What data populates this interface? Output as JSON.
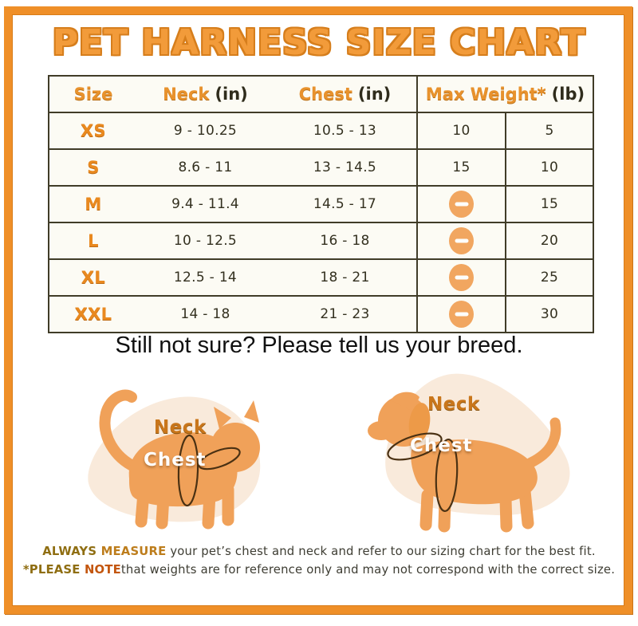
{
  "title": "PET HARNESS SIZE CHART",
  "chart_data": {
    "type": "table",
    "title": "PET HARNESS SIZE CHART",
    "header": {
      "size": {
        "label": "Size",
        "unit": ""
      },
      "neck": {
        "label": "Neck",
        "unit": "(in)"
      },
      "chest": {
        "label": "Chest",
        "unit": "(in)"
      },
      "max_weight": {
        "label": "Max Weight*",
        "unit": "(lb)"
      }
    },
    "max_weight_subcolumns": 2,
    "rows": [
      {
        "size": "XS",
        "neck": "9 - 10.25",
        "chest": "10.5 - 13",
        "weight_left": "10",
        "weight_right": "5"
      },
      {
        "size": "S",
        "neck": "8.6 - 11",
        "chest": "13 - 14.5",
        "weight_left": "15",
        "weight_right": "10"
      },
      {
        "size": "M",
        "neck": "9.4 - 11.4",
        "chest": "14.5 - 17",
        "weight_left": null,
        "weight_right": "15"
      },
      {
        "size": "L",
        "neck": "10 - 12.5",
        "chest": "16 - 18",
        "weight_left": null,
        "weight_right": "20"
      },
      {
        "size": "XL",
        "neck": "12.5 - 14",
        "chest": "18 - 21",
        "weight_left": null,
        "weight_right": "25"
      },
      {
        "size": "XXL",
        "neck": "14 - 18",
        "chest": "21 - 23",
        "weight_left": null,
        "weight_right": "30"
      }
    ],
    "null_cell_rendering": "minus-icon"
  },
  "subtitle": "Still not sure? Please tell us your breed.",
  "illustrations": {
    "cat": {
      "neck_label": "Neck",
      "chest_label": "Chest"
    },
    "dog": {
      "neck_label": "Neck",
      "chest_label": "Chest"
    }
  },
  "footer": {
    "line1": {
      "bold_a": "ALWAYS ",
      "bold_b": "MEASURE",
      "rest": " your pet’s chest and neck and refer to our sizing chart for the best fit."
    },
    "line2": {
      "bold_a": "*PLEASE ",
      "bold_b": "NOTE",
      "rest": "that weights are for reference only and may not correspond with the correct size."
    }
  },
  "colors": {
    "frame_orange": "#EF8F28",
    "title_orange": "#F29B3A",
    "title_outline": "#D67E1C",
    "header_orange": "#E8922D",
    "size_label_orange": "#E9891F",
    "table_border": "#403C28",
    "table_text": "#33301F",
    "table_background": "#FCFBF4",
    "minus_icon_fill": "#F1A660",
    "animal_fill": "#F0A159",
    "blob_fill": "#F9EADB",
    "measure_line": "#4A3113",
    "footer_bold_gold": "#8F6E12",
    "footer_bold_orange": "#BD7D1C",
    "footer_bold_red": "#C3560E"
  }
}
